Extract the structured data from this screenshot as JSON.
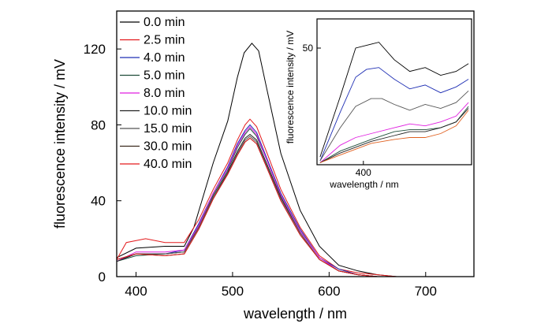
{
  "chart_data": [
    {
      "type": "line",
      "title": "",
      "xlabel": "wavelength / nm",
      "ylabel": "fluorescence intensity / mV",
      "xlim": [
        380,
        750
      ],
      "ylim": [
        0,
        140
      ],
      "x_ticks": [
        400,
        500,
        600,
        700
      ],
      "y_ticks": [
        0,
        40,
        80,
        120
      ],
      "legend_position": "top-left",
      "series": [
        {
          "name": "0.0 min",
          "color": "#000000",
          "points": [
            [
              380,
              10
            ],
            [
              400,
              15
            ],
            [
              430,
              16
            ],
            [
              450,
              16
            ],
            [
              460,
              26
            ],
            [
              480,
              60
            ],
            [
              495,
              82
            ],
            [
              505,
              105
            ],
            [
              512,
              118
            ],
            [
              520,
              123
            ],
            [
              527,
              119
            ],
            [
              535,
              100
            ],
            [
              550,
              65
            ],
            [
              570,
              35
            ],
            [
              590,
              16
            ],
            [
              610,
              6
            ],
            [
              630,
              3
            ],
            [
              650,
              1
            ],
            [
              670,
              0
            ],
            [
              700,
              0
            ],
            [
              750,
              0
            ]
          ]
        },
        {
          "name": "2.5 min",
          "color": "#e31a1c",
          "points": [
            [
              380,
              9
            ],
            [
              390,
              18
            ],
            [
              410,
              20
            ],
            [
              430,
              18
            ],
            [
              450,
              18
            ],
            [
              465,
              30
            ],
            [
              480,
              46
            ],
            [
              495,
              60
            ],
            [
              505,
              72
            ],
            [
              513,
              80
            ],
            [
              518,
              83
            ],
            [
              525,
              79
            ],
            [
              535,
              66
            ],
            [
              550,
              46
            ],
            [
              570,
              26
            ],
            [
              590,
              11
            ],
            [
              610,
              4
            ],
            [
              630,
              2
            ],
            [
              650,
              1
            ],
            [
              670,
              0
            ],
            [
              750,
              0
            ]
          ]
        },
        {
          "name": "4.0 min",
          "color": "#1f2fb4",
          "points": [
            [
              380,
              8
            ],
            [
              400,
              12
            ],
            [
              430,
              12
            ],
            [
              450,
              14
            ],
            [
              465,
              28
            ],
            [
              480,
              44
            ],
            [
              495,
              58
            ],
            [
              505,
              70
            ],
            [
              513,
              77
            ],
            [
              518,
              80
            ],
            [
              525,
              76
            ],
            [
              535,
              63
            ],
            [
              550,
              44
            ],
            [
              570,
              25
            ],
            [
              590,
              10
            ],
            [
              610,
              4
            ],
            [
              630,
              1
            ],
            [
              650,
              0
            ],
            [
              750,
              0
            ]
          ]
        },
        {
          "name": "5.0 min",
          "color": "#1f4d3a",
          "points": [
            [
              380,
              8
            ],
            [
              400,
              11
            ],
            [
              430,
              12
            ],
            [
              450,
              13
            ],
            [
              465,
              27
            ],
            [
              480,
              43
            ],
            [
              495,
              56
            ],
            [
              505,
              68
            ],
            [
              513,
              75
            ],
            [
              518,
              78
            ],
            [
              525,
              74
            ],
            [
              535,
              62
            ],
            [
              550,
              43
            ],
            [
              570,
              24
            ],
            [
              590,
              10
            ],
            [
              610,
              3
            ],
            [
              630,
              1
            ],
            [
              650,
              0
            ],
            [
              750,
              0
            ]
          ]
        },
        {
          "name": "8.0 min",
          "color": "#e01ee0",
          "points": [
            [
              380,
              8
            ],
            [
              400,
              13
            ],
            [
              430,
              13
            ],
            [
              450,
              14
            ],
            [
              465,
              27
            ],
            [
              480,
              44
            ],
            [
              495,
              57
            ],
            [
              505,
              69
            ],
            [
              513,
              76
            ],
            [
              518,
              79
            ],
            [
              525,
              75
            ],
            [
              535,
              62
            ],
            [
              550,
              43
            ],
            [
              570,
              24
            ],
            [
              590,
              10
            ],
            [
              610,
              3
            ],
            [
              630,
              1
            ],
            [
              650,
              0
            ],
            [
              750,
              0
            ]
          ]
        },
        {
          "name": "10.0 min",
          "color": "#222222",
          "points": [
            [
              380,
              8
            ],
            [
              400,
              12
            ],
            [
              430,
              12
            ],
            [
              450,
              13
            ],
            [
              465,
              26
            ],
            [
              480,
              42
            ],
            [
              495,
              55
            ],
            [
              505,
              66
            ],
            [
              513,
              73
            ],
            [
              518,
              75
            ],
            [
              525,
              72
            ],
            [
              535,
              60
            ],
            [
              550,
              42
            ],
            [
              570,
              23
            ],
            [
              590,
              9
            ],
            [
              610,
              3
            ],
            [
              630,
              1
            ],
            [
              650,
              0
            ],
            [
              750,
              0
            ]
          ]
        },
        {
          "name": "15.0 min",
          "color": "#555555",
          "points": [
            [
              380,
              9
            ],
            [
              400,
              12
            ],
            [
              430,
              12
            ],
            [
              450,
              13
            ],
            [
              465,
              26
            ],
            [
              480,
              42
            ],
            [
              495,
              54
            ],
            [
              505,
              65
            ],
            [
              513,
              72
            ],
            [
              518,
              74
            ],
            [
              525,
              71
            ],
            [
              535,
              59
            ],
            [
              550,
              41
            ],
            [
              570,
              23
            ],
            [
              590,
              9
            ],
            [
              610,
              3
            ],
            [
              630,
              1
            ],
            [
              650,
              0
            ],
            [
              750,
              0
            ]
          ]
        },
        {
          "name": "30.0 min",
          "color": "#3b2a1e",
          "points": [
            [
              380,
              9
            ],
            [
              400,
              12
            ],
            [
              430,
              11
            ],
            [
              450,
              12
            ],
            [
              465,
              25
            ],
            [
              480,
              41
            ],
            [
              495,
              54
            ],
            [
              505,
              64
            ],
            [
              513,
              71
            ],
            [
              518,
              73
            ],
            [
              525,
              70
            ],
            [
              535,
              58
            ],
            [
              550,
              40
            ],
            [
              570,
              22
            ],
            [
              590,
              9
            ],
            [
              610,
              3
            ],
            [
              630,
              1
            ],
            [
              650,
              0
            ],
            [
              750,
              0
            ]
          ]
        },
        {
          "name": "40.0 min",
          "color": "#e31a1c",
          "points": [
            [
              380,
              9
            ],
            [
              400,
              12
            ],
            [
              430,
              11
            ],
            [
              450,
              12
            ],
            [
              465,
              25
            ],
            [
              480,
              41
            ],
            [
              495,
              54
            ],
            [
              505,
              64
            ],
            [
              513,
              71
            ],
            [
              518,
              73
            ],
            [
              525,
              70
            ],
            [
              535,
              58
            ],
            [
              550,
              40
            ],
            [
              570,
              22
            ],
            [
              590,
              9
            ],
            [
              610,
              3
            ],
            [
              630,
              1
            ],
            [
              650,
              0
            ],
            [
              750,
              0
            ]
          ]
        }
      ]
    },
    {
      "type": "line",
      "title": "",
      "xlabel": "wavelength / nm",
      "ylabel": "fluorescence intensity / mV",
      "xlim": [
        370,
        470
      ],
      "ylim": [
        -10,
        65
      ],
      "x_ticks": [
        400
      ],
      "y_ticks": [
        50
      ],
      "series": [
        {
          "color": "#000000",
          "points": [
            [
              372,
              -6
            ],
            [
              385,
              25
            ],
            [
              395,
              50
            ],
            [
              405,
              52
            ],
            [
              410,
              53
            ],
            [
              420,
              44
            ],
            [
              430,
              38
            ],
            [
              440,
              40
            ],
            [
              450,
              36
            ],
            [
              460,
              38
            ],
            [
              468,
              42
            ]
          ]
        },
        {
          "color": "#1f2fb4",
          "points": [
            [
              372,
              -8
            ],
            [
              385,
              17
            ],
            [
              395,
              35
            ],
            [
              402,
              39
            ],
            [
              410,
              40
            ],
            [
              420,
              34
            ],
            [
              430,
              29
            ],
            [
              440,
              31
            ],
            [
              450,
              27
            ],
            [
              460,
              30
            ],
            [
              468,
              34
            ]
          ]
        },
        {
          "color": "#555555",
          "points": [
            [
              372,
              -8
            ],
            [
              385,
              9
            ],
            [
              395,
              20
            ],
            [
              405,
              24
            ],
            [
              412,
              24
            ],
            [
              420,
              21
            ],
            [
              430,
              18
            ],
            [
              440,
              21
            ],
            [
              450,
              19
            ],
            [
              460,
              22
            ],
            [
              468,
              28
            ]
          ]
        },
        {
          "color": "#e01ee0",
          "points": [
            [
              372,
              -9
            ],
            [
              385,
              0
            ],
            [
              395,
              4
            ],
            [
              405,
              6
            ],
            [
              420,
              9
            ],
            [
              430,
              11
            ],
            [
              440,
              10
            ],
            [
              450,
              12
            ],
            [
              460,
              15
            ],
            [
              468,
              22
            ]
          ]
        },
        {
          "color": "#1f4d3a",
          "points": [
            [
              372,
              -9
            ],
            [
              385,
              -3
            ],
            [
              395,
              0
            ],
            [
              405,
              3
            ],
            [
              420,
              7
            ],
            [
              430,
              8
            ],
            [
              440,
              8
            ],
            [
              450,
              9
            ],
            [
              460,
              12
            ],
            [
              468,
              20
            ]
          ]
        },
        {
          "color": "#222222",
          "points": [
            [
              372,
              -9
            ],
            [
              385,
              -4
            ],
            [
              395,
              -1
            ],
            [
              405,
              2
            ],
            [
              420,
              5
            ],
            [
              430,
              7
            ],
            [
              440,
              7
            ],
            [
              450,
              9
            ],
            [
              460,
              12
            ],
            [
              468,
              19
            ]
          ]
        },
        {
          "color": "#e06020",
          "points": [
            [
              372,
              -9
            ],
            [
              385,
              -5
            ],
            [
              395,
              -2
            ],
            [
              405,
              1
            ],
            [
              420,
              3
            ],
            [
              430,
              4
            ],
            [
              440,
              4
            ],
            [
              450,
              6
            ],
            [
              460,
              10
            ],
            [
              468,
              18
            ]
          ]
        }
      ]
    }
  ]
}
